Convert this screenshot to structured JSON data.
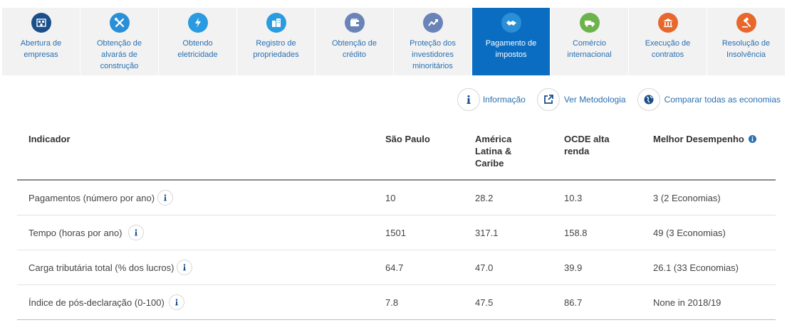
{
  "tabs": [
    {
      "label": "Abertura de empresas",
      "icon": "building-icon",
      "color": "#1b4f8a"
    },
    {
      "label": "Obtenção de alvarás de construção",
      "icon": "tools-icon",
      "color": "#2a8fd6"
    },
    {
      "label": "Obtendo eletricidade",
      "icon": "lightning-icon",
      "color": "#2a9be0"
    },
    {
      "label": "Registro de propriedades",
      "icon": "buildings-icon",
      "color": "#2a9be0"
    },
    {
      "label": "Obtenção de crédito",
      "icon": "wallet-icon",
      "color": "#6a84b8"
    },
    {
      "label": "Proteção dos investidores minoritários",
      "icon": "trend-icon",
      "color": "#6a84b8"
    },
    {
      "label": "Pagamento de impostos",
      "icon": "handshake-icon",
      "color": "#2a8fd6",
      "active": true
    },
    {
      "label": "Comércio internacional",
      "icon": "truck-icon",
      "color": "#6bb34a"
    },
    {
      "label": "Execução de contratos",
      "icon": "courthouse-icon",
      "color": "#e8672c"
    },
    {
      "label": "Resolução de Insolvência",
      "icon": "gavel-icon",
      "color": "#e8672c"
    }
  ],
  "actions": {
    "info": "Informação",
    "methodology": "Ver Metodologia",
    "compare": "Comparar todas as economias"
  },
  "table": {
    "headers": {
      "indicator": "Indicador",
      "city": "São Paulo",
      "region": "América Latina & Caribe",
      "oecd": "OCDE alta renda",
      "best": "Melhor Desempenho"
    },
    "rows": [
      {
        "indicator": "Pagamentos (número por ano)",
        "city": "10",
        "region": "28.2",
        "oecd": "10.3",
        "best": "3 (2 Economias)"
      },
      {
        "indicator": "Tempo (horas por ano)",
        "city": "1501",
        "region": "317.1",
        "oecd": "158.8",
        "best": "49 (3 Economias)"
      },
      {
        "indicator": "Carga tributária total (% dos lucros)",
        "city": "64.7",
        "region": "47.0",
        "oecd": "39.9",
        "best": "26.1 (33 Economias)"
      },
      {
        "indicator": "Índice de pós-declaração (0-100)",
        "city": "7.8",
        "region": "47.5",
        "oecd": "86.7",
        "best": "None in 2018/19"
      }
    ]
  },
  "colors": {
    "accent": "#0a6dc2",
    "link": "#2a6fb0",
    "tab_bg": "#f2f2f2"
  }
}
